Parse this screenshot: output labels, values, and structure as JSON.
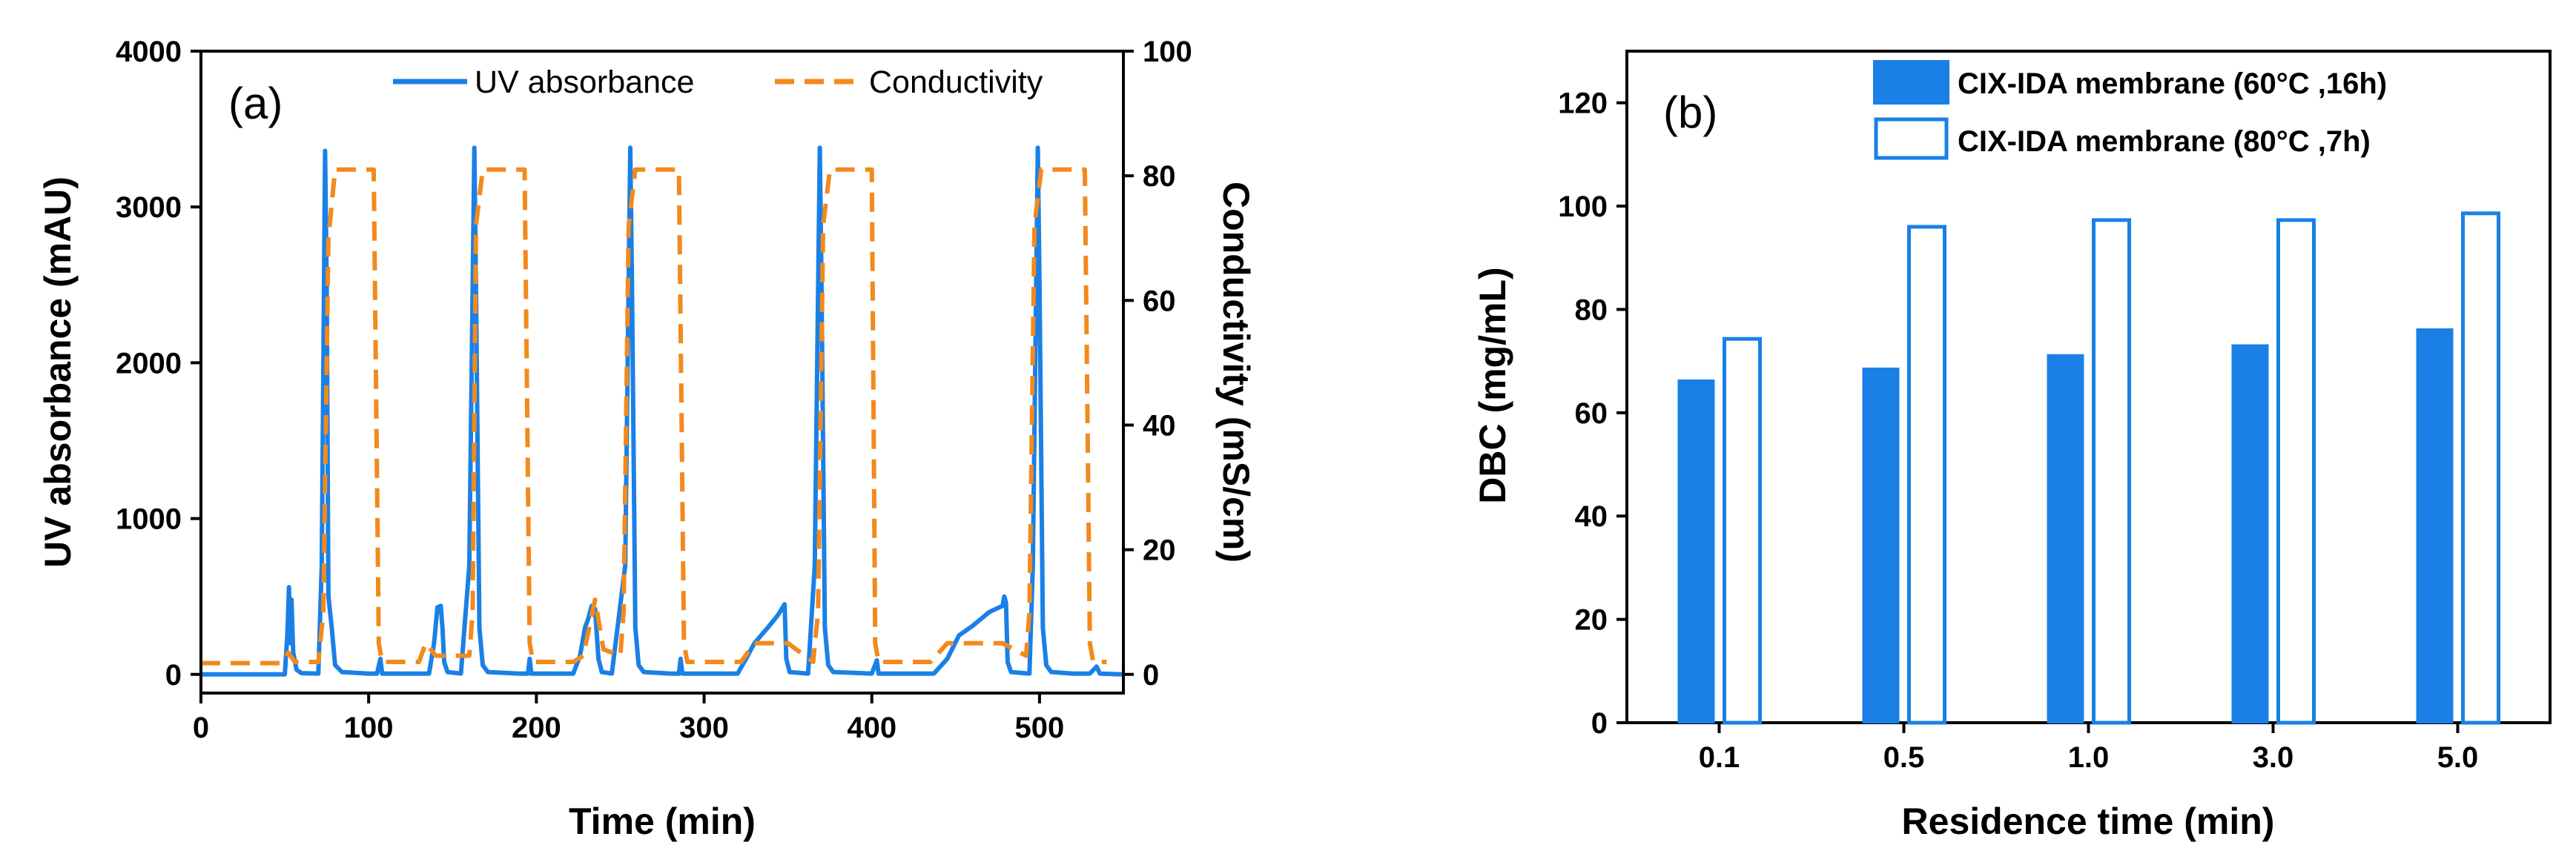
{
  "chart_data": [
    {
      "type": "line",
      "panel_label": "(a)",
      "xlabel": "Time (min)",
      "ylabel": "UV absorbance (mAU)",
      "y2label": "Conductivity (mS/cm)",
      "xlim": [
        0,
        550
      ],
      "ylim": [
        -120,
        4000
      ],
      "y2lim": [
        -3,
        100
      ],
      "xticks": [
        0,
        100,
        200,
        300,
        400,
        500
      ],
      "yticks": [
        0,
        1000,
        2000,
        3000,
        4000
      ],
      "y2ticks": [
        0,
        20,
        40,
        60,
        80,
        100
      ],
      "legend_position": "top-right",
      "colors": {
        "uv": "#1a80e6",
        "conductivity": "#f28a1c"
      },
      "series": [
        {
          "name": "UV absorbance",
          "axis": "left",
          "style": "solid",
          "points": [
            [
              0,
              0
            ],
            [
              50,
              0
            ],
            [
              51.5,
              250
            ],
            [
              52.5,
              560
            ],
            [
              53.3,
              200
            ],
            [
              54,
              480
            ],
            [
              55,
              140
            ],
            [
              57,
              30
            ],
            [
              60,
              8
            ],
            [
              70,
              5
            ],
            [
              72,
              700
            ],
            [
              74,
              3360
            ],
            [
              75,
              2500
            ],
            [
              76,
              500
            ],
            [
              78,
              300
            ],
            [
              80,
              60
            ],
            [
              84,
              15
            ],
            [
              100,
              5
            ],
            [
              105,
              5
            ],
            [
              107,
              100
            ],
            [
              108,
              5
            ],
            [
              136,
              5
            ],
            [
              139,
              200
            ],
            [
              141,
              430
            ],
            [
              143,
              440
            ],
            [
              144,
              300
            ],
            [
              145,
              80
            ],
            [
              147,
              15
            ],
            [
              155,
              5
            ],
            [
              160,
              700
            ],
            [
              163,
              3380
            ],
            [
              164,
              2500
            ],
            [
              166,
              300
            ],
            [
              168,
              60
            ],
            [
              171,
              15
            ],
            [
              190,
              5
            ],
            [
              195,
              5
            ],
            [
              196,
              100
            ],
            [
              197,
              5
            ],
            [
              222,
              5
            ],
            [
              226,
              120
            ],
            [
              229,
              300
            ],
            [
              231,
              360
            ],
            [
              233,
              440
            ],
            [
              235,
              420
            ],
            [
              237,
              100
            ],
            [
              239,
              15
            ],
            [
              245,
              5
            ],
            [
              253,
              700
            ],
            [
              256,
              3380
            ],
            [
              257,
              2500
            ],
            [
              259,
              300
            ],
            [
              261,
              60
            ],
            [
              264,
              15
            ],
            [
              280,
              5
            ],
            [
              285,
              5
            ],
            [
              286,
              100
            ],
            [
              287,
              5
            ],
            [
              320,
              5
            ],
            [
              325,
              100
            ],
            [
              330,
              200
            ],
            [
              338,
              300
            ],
            [
              344,
              380
            ],
            [
              348,
              450
            ],
            [
              349,
              100
            ],
            [
              351,
              15
            ],
            [
              362,
              5
            ],
            [
              366,
              700
            ],
            [
              369,
              3380
            ],
            [
              370,
              2500
            ],
            [
              372,
              300
            ],
            [
              374,
              60
            ],
            [
              377,
              15
            ],
            [
              400,
              5
            ],
            [
              403,
              90
            ],
            [
              404,
              5
            ],
            [
              437,
              5
            ],
            [
              445,
              100
            ],
            [
              452,
              250
            ],
            [
              460,
              310
            ],
            [
              470,
              400
            ],
            [
              478,
              440
            ],
            [
              479,
              500
            ],
            [
              480,
              460
            ],
            [
              481,
              80
            ],
            [
              483,
              15
            ],
            [
              494,
              5
            ],
            [
              496,
              700
            ],
            [
              499,
              3380
            ],
            [
              500,
              2500
            ],
            [
              502,
              300
            ],
            [
              504,
              60
            ],
            [
              507,
              15
            ],
            [
              520,
              5
            ],
            [
              530,
              5
            ],
            [
              534,
              50
            ],
            [
              536,
              5
            ],
            [
              550,
              0
            ]
          ]
        },
        {
          "name": "Conductivity",
          "axis": "right",
          "style": "dashed",
          "points": [
            [
              0,
              1.8
            ],
            [
              48,
              1.8
            ],
            [
              52,
              3.5
            ],
            [
              56,
              2
            ],
            [
              70,
              2
            ],
            [
              73,
              10
            ],
            [
              76,
              70
            ],
            [
              80,
              81
            ],
            [
              100,
              81
            ],
            [
              103,
              81
            ],
            [
              106,
              5
            ],
            [
              108,
              2
            ],
            [
              130,
              2
            ],
            [
              134,
              5
            ],
            [
              140,
              3
            ],
            [
              160,
              3
            ],
            [
              162,
              10
            ],
            [
              164,
              72
            ],
            [
              168,
              81
            ],
            [
              190,
              81
            ],
            [
              193,
              81
            ],
            [
              196,
              5
            ],
            [
              198,
              2
            ],
            [
              215,
              2
            ],
            [
              222,
              2
            ],
            [
              228,
              3
            ],
            [
              235,
              12
            ],
            [
              240,
              4
            ],
            [
              250,
              3
            ],
            [
              252,
              10
            ],
            [
              255,
              72
            ],
            [
              259,
              81
            ],
            [
              282,
              81
            ],
            [
              285,
              81
            ],
            [
              288,
              5
            ],
            [
              290,
              2
            ],
            [
              322,
              2
            ],
            [
              330,
              5
            ],
            [
              350,
              5
            ],
            [
              365,
              2
            ],
            [
              368,
              10
            ],
            [
              371,
              72
            ],
            [
              375,
              81
            ],
            [
              396,
              81
            ],
            [
              400,
              81
            ],
            [
              402,
              5
            ],
            [
              404,
              2
            ],
            [
              435,
              2
            ],
            [
              445,
              5
            ],
            [
              478,
              5
            ],
            [
              492,
              3
            ],
            [
              494,
              10
            ],
            [
              497,
              72
            ],
            [
              501,
              81
            ],
            [
              524,
              81
            ],
            [
              527,
              81
            ],
            [
              530,
              5
            ],
            [
              532,
              2
            ],
            [
              540,
              2
            ]
          ]
        }
      ]
    },
    {
      "type": "bar",
      "panel_label": "(b)",
      "xlabel": "Residence time (min)",
      "ylabel": "DBC (mg/mL)",
      "categories": [
        "0.1",
        "0.5",
        "1.0",
        "3.0",
        "5.0"
      ],
      "ylim": [
        0,
        130
      ],
      "yticks": [
        0,
        20,
        40,
        60,
        80,
        100,
        120
      ],
      "legend_position": "top-right",
      "colors": {
        "filled": "#1a80e6",
        "outline": "#1a80e6"
      },
      "series": [
        {
          "name": "CIX-IDA membrane (60°C ,16h)",
          "style": "filled",
          "values": [
            66.3,
            68.6,
            71.2,
            73.1,
            76.2
          ]
        },
        {
          "name": "CIX-IDA membrane (80°C ,7h)",
          "style": "outline",
          "values": [
            74.3,
            96.0,
            97.3,
            97.3,
            98.6
          ]
        }
      ]
    }
  ]
}
